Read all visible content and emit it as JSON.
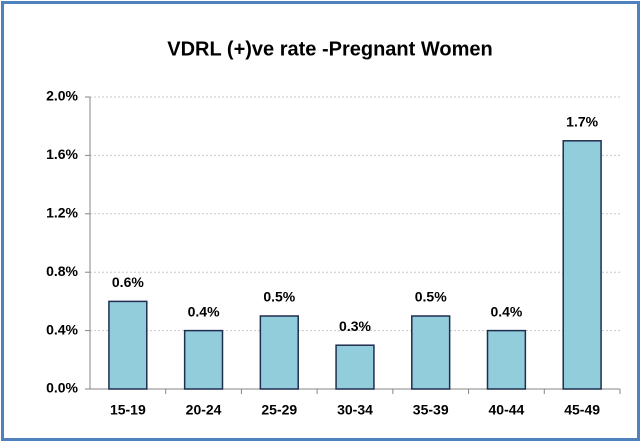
{
  "chart_data": {
    "type": "bar",
    "title": "VDRL (+)ve rate -Pregnant Women",
    "categories": [
      "15-19",
      "20-24",
      "25-29",
      "30-34",
      "35-39",
      "40-44",
      "45-49"
    ],
    "values": [
      0.6,
      0.4,
      0.5,
      0.3,
      0.5,
      0.4,
      1.7
    ],
    "value_labels": [
      "0.6%",
      "0.4%",
      "0.5%",
      "0.3%",
      "0.5%",
      "0.4%",
      "1.7%"
    ],
    "color": "#92cddc",
    "ylim": [
      0,
      2
    ],
    "yticks": [
      {
        "value": 0,
        "label": "0.0%"
      },
      {
        "value": 0.4,
        "label": "0.4%"
      },
      {
        "value": 0.8,
        "label": "0.8%"
      },
      {
        "value": 1.2,
        "label": "1.2%"
      },
      {
        "value": 1.6,
        "label": "1.6%"
      },
      {
        "value": 2,
        "label": "2.0%"
      }
    ],
    "grid": true
  }
}
